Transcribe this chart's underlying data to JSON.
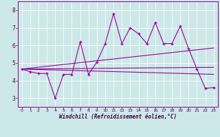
{
  "xlabel": "Windchill (Refroidissement éolien,°C)",
  "background_color": "#cce8e8",
  "line_color": "#990099",
  "xlim": [
    -0.5,
    23.5
  ],
  "ylim": [
    2.5,
    8.5
  ],
  "xticks": [
    0,
    1,
    2,
    3,
    4,
    5,
    6,
    7,
    8,
    9,
    10,
    11,
    12,
    13,
    14,
    15,
    16,
    17,
    18,
    19,
    20,
    21,
    22,
    23
  ],
  "yticks": [
    3,
    4,
    5,
    6,
    7,
    8
  ],
  "series_main": {
    "x": [
      0,
      1,
      2,
      3,
      4,
      5,
      6,
      7,
      8,
      9,
      10,
      11,
      12,
      13,
      14,
      15,
      16,
      17,
      18,
      19,
      20,
      21,
      22,
      23
    ],
    "y": [
      4.65,
      4.5,
      4.4,
      4.4,
      3.0,
      4.35,
      4.35,
      6.2,
      4.35,
      5.05,
      6.1,
      7.8,
      6.1,
      7.0,
      6.65,
      6.1,
      7.3,
      6.1,
      6.1,
      7.1,
      5.8,
      4.65,
      3.55,
      3.6
    ]
  },
  "trend_lines": [
    {
      "x": [
        0,
        23
      ],
      "y": [
        4.65,
        4.75
      ]
    },
    {
      "x": [
        0,
        23
      ],
      "y": [
        4.65,
        5.85
      ]
    },
    {
      "x": [
        0,
        23
      ],
      "y": [
        4.65,
        4.35
      ]
    }
  ]
}
